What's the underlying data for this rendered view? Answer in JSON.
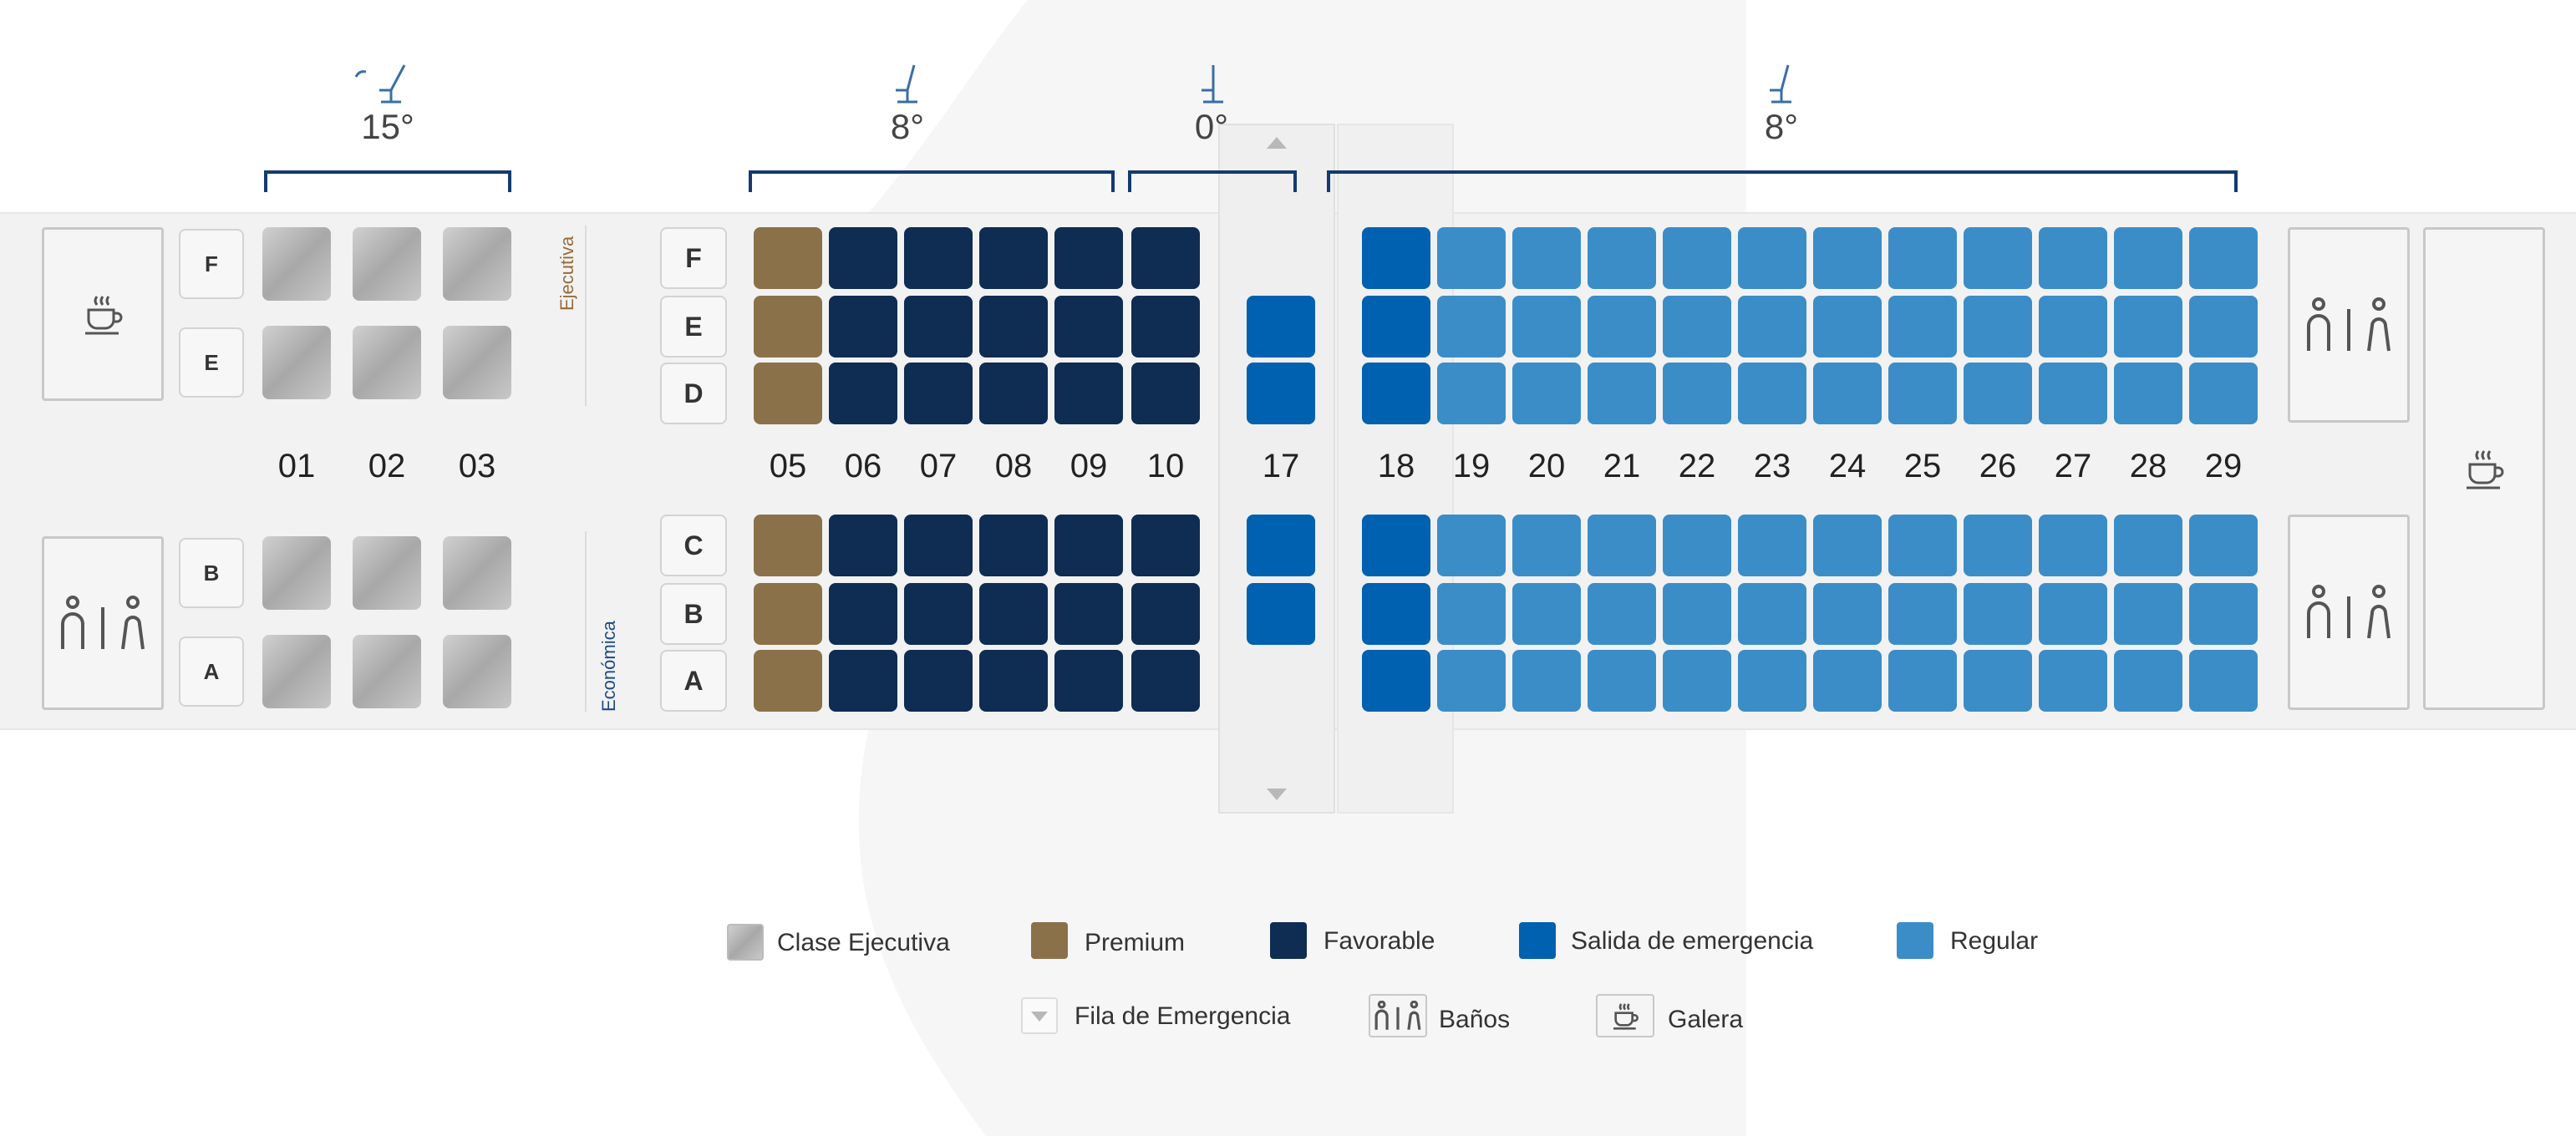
{
  "recline_groups": [
    {
      "label": "15°"
    },
    {
      "label": "8°"
    },
    {
      "label": "0°"
    },
    {
      "label": "8°"
    }
  ],
  "class_labels": {
    "ejecutiva": "Ejecutiva",
    "economica": "Económica"
  },
  "business": {
    "rows": [
      "01",
      "02",
      "03"
    ],
    "letters_top": [
      "F",
      "E"
    ],
    "letters_bottom": [
      "B",
      "A"
    ]
  },
  "economy": {
    "letters_top": [
      "F",
      "E",
      "D"
    ],
    "letters_bottom": [
      "C",
      "B",
      "A"
    ],
    "rows": [
      "05",
      "06",
      "07",
      "08",
      "09",
      "10",
      "17",
      "18",
      "19",
      "20",
      "21",
      "22",
      "23",
      "24",
      "25",
      "26",
      "27",
      "28",
      "29"
    ]
  },
  "legend": {
    "clase_ejecutiva": "Clase Ejecutiva",
    "premium": "Premium",
    "favorable": "Favorable",
    "salida": "Salida de emergencia",
    "regular": "Regular",
    "fila_emergencia": "Fila de Emergencia",
    "banos": "Baños",
    "galera": "Galera"
  },
  "colors": {
    "premium": "#8b7149",
    "favorable": "#0f2c52",
    "emergency": "#0061b0",
    "regular": "#3b8dc8",
    "bracket": "#143a70"
  },
  "icons": [
    "galley-icon",
    "lavatory-icon",
    "seat-recline-icon",
    "arrow-up-icon",
    "arrow-down-icon"
  ]
}
